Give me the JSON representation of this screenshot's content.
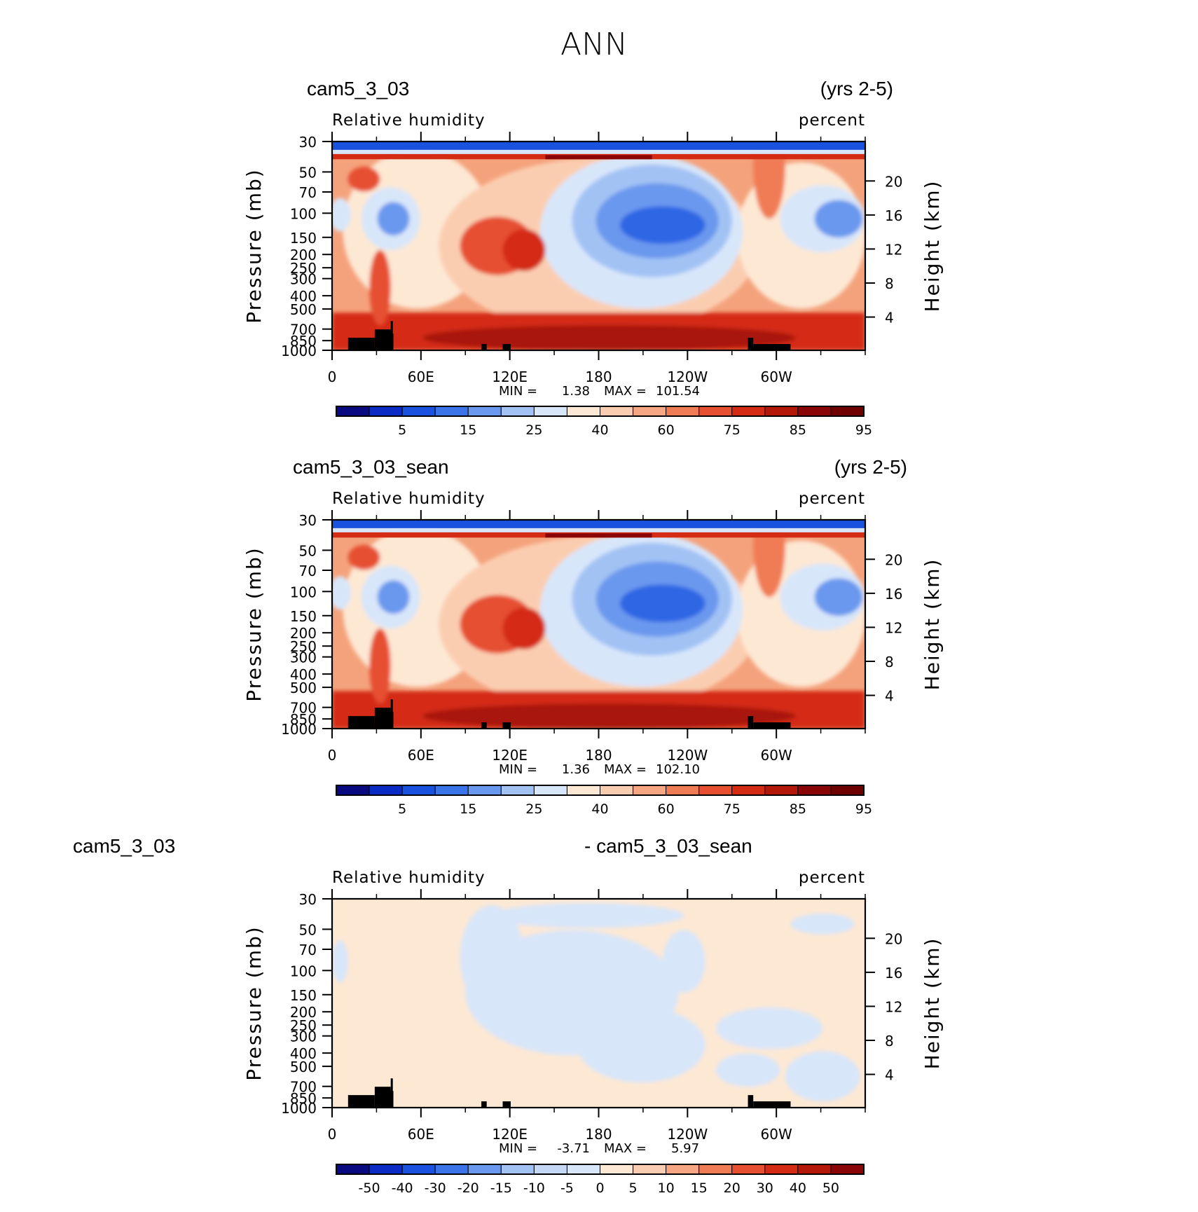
{
  "figure": {
    "title": "ANN"
  },
  "chart_data": [
    {
      "type": "contour",
      "case": "cam5_3_03",
      "years": "(yrs 2-5)",
      "variable": "Relative humidity",
      "units": "percent",
      "ylabel": "Pressure (mb)",
      "ylabel2": "Height (km)",
      "x_ticks": [
        "0",
        "60E",
        "120E",
        "180",
        "120W",
        "60W"
      ],
      "y_ticks": [
        "30",
        "50",
        "70",
        "100",
        "150",
        "200",
        "250",
        "300",
        "400",
        "500",
        "700",
        "850",
        "1000"
      ],
      "y2_ticks": [
        "20",
        "16",
        "12",
        "8",
        "4"
      ],
      "stats": {
        "min_label": "MIN =",
        "min": "1.38",
        "max_label": "MAX =",
        "max": "101.54"
      },
      "colorbar_labels": [
        "5",
        "15",
        "25",
        "40",
        "60",
        "75",
        "85",
        "95"
      ],
      "colorbar_colors": [
        "#0a0a80",
        "#0a2bc4",
        "#1a52e0",
        "#3a74e8",
        "#6a98ee",
        "#a2c2f4",
        "#d8e6fa",
        "#fde8d4",
        "#fbcdb0",
        "#f6a682",
        "#f07c55",
        "#e65030",
        "#d42c14",
        "#b41808",
        "#8a0606",
        "#6e0000"
      ]
    },
    {
      "type": "contour",
      "case": "cam5_3_03_sean",
      "years": "(yrs 2-5)",
      "variable": "Relative humidity",
      "units": "percent",
      "ylabel": "Pressure (mb)",
      "ylabel2": "Height (km)",
      "x_ticks": [
        "0",
        "60E",
        "120E",
        "180",
        "120W",
        "60W"
      ],
      "y_ticks": [
        "30",
        "50",
        "70",
        "100",
        "150",
        "200",
        "250",
        "300",
        "400",
        "500",
        "700",
        "850",
        "1000"
      ],
      "y2_ticks": [
        "20",
        "16",
        "12",
        "8",
        "4"
      ],
      "stats": {
        "min_label": "MIN =",
        "min": "1.36",
        "max_label": "MAX =",
        "max": "102.10"
      },
      "colorbar_labels": [
        "5",
        "15",
        "25",
        "40",
        "60",
        "75",
        "85",
        "95"
      ],
      "colorbar_colors": [
        "#0a0a80",
        "#0a2bc4",
        "#1a52e0",
        "#3a74e8",
        "#6a98ee",
        "#a2c2f4",
        "#d8e6fa",
        "#fde8d4",
        "#fbcdb0",
        "#f6a682",
        "#f07c55",
        "#e65030",
        "#d42c14",
        "#b41808",
        "#8a0606",
        "#6e0000"
      ]
    },
    {
      "type": "contour",
      "case": "cam5_3_03",
      "case2": "- cam5_3_03_sean",
      "years": "",
      "variable": "Relative humidity",
      "units": "percent",
      "ylabel": "Pressure (mb)",
      "ylabel2": "Height (km)",
      "x_ticks": [
        "0",
        "60E",
        "120E",
        "180",
        "120W",
        "60W"
      ],
      "y_ticks": [
        "30",
        "50",
        "70",
        "100",
        "150",
        "200",
        "250",
        "300",
        "400",
        "500",
        "700",
        "850",
        "1000"
      ],
      "y2_ticks": [
        "20",
        "16",
        "12",
        "8",
        "4"
      ],
      "stats": {
        "min_label": "MIN =",
        "min": "-3.71",
        "max_label": "MAX =",
        "max": "5.97"
      },
      "colorbar_labels": [
        "-50",
        "-40",
        "-30",
        "-20",
        "-15",
        "-10",
        "-5",
        "0",
        "5",
        "10",
        "15",
        "20",
        "30",
        "40",
        "50"
      ],
      "colorbar_colors": [
        "#0a0a80",
        "#0a2bc4",
        "#1a52e0",
        "#3a74e8",
        "#6a98ee",
        "#a2c2f4",
        "#c4d8f6",
        "#d8e6fa",
        "#fde8d4",
        "#fbcdb0",
        "#f6a682",
        "#f07c55",
        "#e65030",
        "#d42c14",
        "#b41808",
        "#8a0606"
      ]
    }
  ]
}
